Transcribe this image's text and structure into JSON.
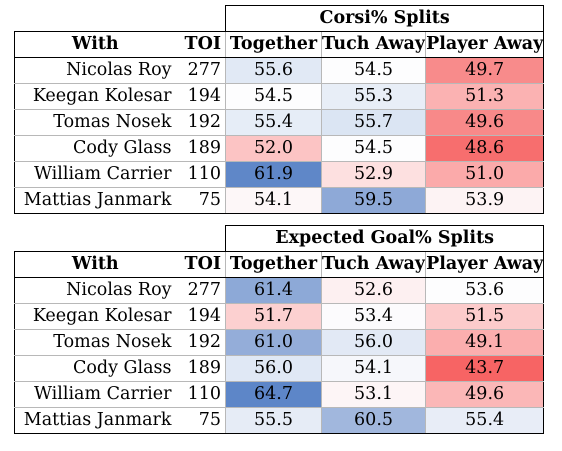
{
  "tables": [
    {
      "title": "Corsi% Splits",
      "headers": [
        "With",
        "TOI",
        "Together",
        "Tuch Away",
        "Player Away"
      ],
      "rows": [
        {
          "name": "Nicolas Roy",
          "toi": "277",
          "values": [
            "55.6",
            "54.5",
            "49.7"
          ],
          "colors": [
            "#e1e9f5",
            "#fdfdfe",
            "#f88b8b"
          ]
        },
        {
          "name": "Keegan Kolesar",
          "toi": "194",
          "values": [
            "54.5",
            "55.3",
            "51.3"
          ],
          "colors": [
            "#fdfdfe",
            "#e8eef7",
            "#fbb2b2"
          ]
        },
        {
          "name": "Tomas Nosek",
          "toi": "192",
          "values": [
            "55.4",
            "55.7",
            "49.6"
          ],
          "colors": [
            "#e6edf7",
            "#dbe5f3",
            "#f88989"
          ]
        },
        {
          "name": "Cody Glass",
          "toi": "189",
          "values": [
            "52.0",
            "54.5",
            "48.6"
          ],
          "colors": [
            "#fcc4c4",
            "#fdfdfe",
            "#f76e6e"
          ]
        },
        {
          "name": "William Carrier",
          "toi": "110",
          "values": [
            "61.9",
            "52.9",
            "51.0"
          ],
          "colors": [
            "#5f87c8",
            "#fde0e0",
            "#fbaaaa"
          ]
        },
        {
          "name": "Mattias Janmark",
          "toi": "75",
          "values": [
            "54.1",
            "59.5",
            "53.9"
          ],
          "colors": [
            "#fdf7f8",
            "#8ea9d7",
            "#fdf3f4"
          ]
        }
      ]
    },
    {
      "title": "Expected Goal% Splits",
      "headers": [
        "With",
        "TOI",
        "Together",
        "Tuch Away",
        "Player Away"
      ],
      "rows": [
        {
          "name": "Nicolas Roy",
          "toi": "277",
          "values": [
            "61.4",
            "52.6",
            "53.6"
          ],
          "colors": [
            "#8da9d7",
            "#fdf0f1",
            "#fdfdfe"
          ]
        },
        {
          "name": "Keegan Kolesar",
          "toi": "194",
          "values": [
            "51.7",
            "53.4",
            "51.5"
          ],
          "colors": [
            "#fcd0d0",
            "#fcfbfd",
            "#fccbcb"
          ]
        },
        {
          "name": "Tomas Nosek",
          "toi": "192",
          "values": [
            "61.0",
            "56.0",
            "49.1"
          ],
          "colors": [
            "#94add9",
            "#e2e9f5",
            "#fbaeae"
          ]
        },
        {
          "name": "Cody Glass",
          "toi": "189",
          "values": [
            "56.0",
            "54.1",
            "43.7"
          ],
          "colors": [
            "#e0e8f5",
            "#f6f7fb",
            "#f76464"
          ]
        },
        {
          "name": "William Carrier",
          "toi": "110",
          "values": [
            "64.7",
            "53.1",
            "49.6"
          ],
          "colors": [
            "#5d86c8",
            "#fdf5f6",
            "#fbb7b7"
          ]
        },
        {
          "name": "Mattias Janmark",
          "toi": "75",
          "values": [
            "55.5",
            "60.5",
            "55.4"
          ],
          "colors": [
            "#e6ecf6",
            "#a1b7dd",
            "#e8edf7"
          ]
        }
      ]
    }
  ]
}
